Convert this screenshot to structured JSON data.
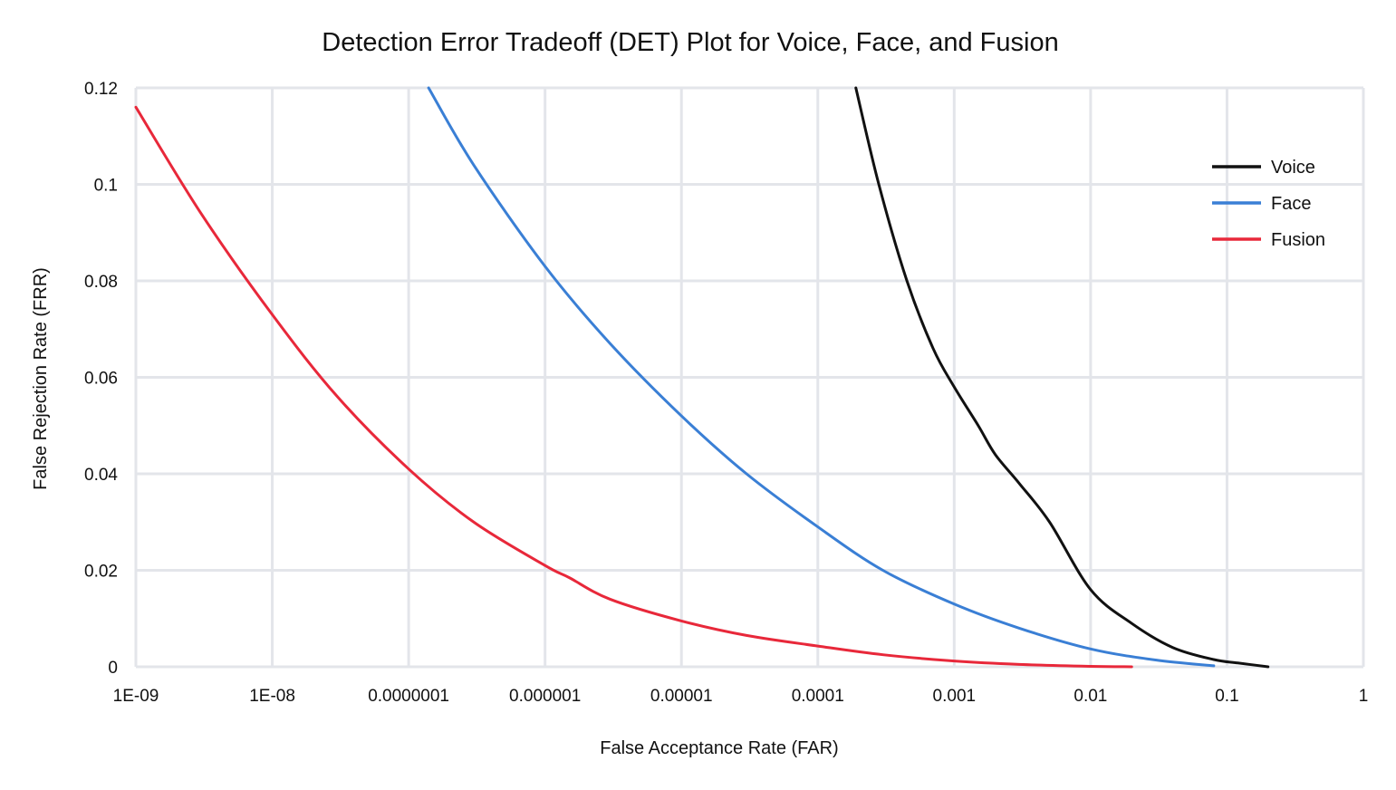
{
  "chart_data": {
    "type": "line",
    "title": "Detection Error Tradeoff (DET) Plot for Voice, Face, and Fusion",
    "xlabel": "False Acceptance Rate (FAR)",
    "ylabel": "False Rejection Rate (FRR)",
    "x_scale": "log",
    "xlim": [
      1e-09,
      1
    ],
    "ylim": [
      0,
      0.12
    ],
    "x_ticks": [
      {
        "value": 1e-09,
        "label": "1E-09"
      },
      {
        "value": 1e-08,
        "label": "1E-08"
      },
      {
        "value": 1e-07,
        "label": "0.0000001"
      },
      {
        "value": 1e-06,
        "label": "0.000001"
      },
      {
        "value": 1e-05,
        "label": "0.00001"
      },
      {
        "value": 0.0001,
        "label": "0.0001"
      },
      {
        "value": 0.001,
        "label": "0.001"
      },
      {
        "value": 0.01,
        "label": "0.01"
      },
      {
        "value": 0.1,
        "label": "0.1"
      },
      {
        "value": 1,
        "label": "1"
      }
    ],
    "y_ticks": [
      {
        "value": 0,
        "label": "0"
      },
      {
        "value": 0.02,
        "label": "0.02"
      },
      {
        "value": 0.04,
        "label": "0.04"
      },
      {
        "value": 0.06,
        "label": "0.06"
      },
      {
        "value": 0.08,
        "label": "0.08"
      },
      {
        "value": 0.1,
        "label": "0.1"
      },
      {
        "value": 0.12,
        "label": "0.12"
      }
    ],
    "grid": true,
    "legend_position": "top-right",
    "series": [
      {
        "name": "Voice",
        "color": "#111111",
        "points": [
          [
            0.00019,
            0.12
          ],
          [
            0.00028,
            0.1
          ],
          [
            0.00045,
            0.08
          ],
          [
            0.0007,
            0.066
          ],
          [
            0.001,
            0.058
          ],
          [
            0.0015,
            0.05
          ],
          [
            0.002,
            0.044
          ],
          [
            0.003,
            0.038
          ],
          [
            0.005,
            0.03
          ],
          [
            0.01,
            0.016
          ],
          [
            0.02,
            0.009
          ],
          [
            0.04,
            0.004
          ],
          [
            0.08,
            0.0015
          ],
          [
            0.12,
            0.0008
          ],
          [
            0.2,
            0.0
          ]
        ]
      },
      {
        "name": "Face",
        "color": "#3a7fd5",
        "points": [
          [
            1.4e-07,
            0.12
          ],
          [
            3e-07,
            0.104
          ],
          [
            1e-06,
            0.083
          ],
          [
            3e-06,
            0.067
          ],
          [
            1e-05,
            0.052
          ],
          [
            3e-05,
            0.04
          ],
          [
            0.0001,
            0.029
          ],
          [
            0.0003,
            0.02
          ],
          [
            0.001,
            0.013
          ],
          [
            0.003,
            0.008
          ],
          [
            0.01,
            0.0037
          ],
          [
            0.03,
            0.0014
          ],
          [
            0.08,
            0.0002
          ]
        ]
      },
      {
        "name": "Fusion",
        "color": "#e8283a",
        "points": [
          [
            1e-09,
            0.116
          ],
          [
            3e-09,
            0.094
          ],
          [
            1e-08,
            0.073
          ],
          [
            3e-08,
            0.056
          ],
          [
            1e-07,
            0.041
          ],
          [
            3e-07,
            0.03
          ],
          [
            1e-06,
            0.021
          ],
          [
            1.5e-06,
            0.0185
          ],
          [
            3e-06,
            0.014
          ],
          [
            1e-05,
            0.0095
          ],
          [
            3e-05,
            0.0065
          ],
          [
            0.0001,
            0.0043
          ],
          [
            0.0003,
            0.0025
          ],
          [
            0.001,
            0.0012
          ],
          [
            0.003,
            0.0005
          ],
          [
            0.01,
            0.0001
          ],
          [
            0.02,
            0.0
          ]
        ]
      }
    ]
  }
}
